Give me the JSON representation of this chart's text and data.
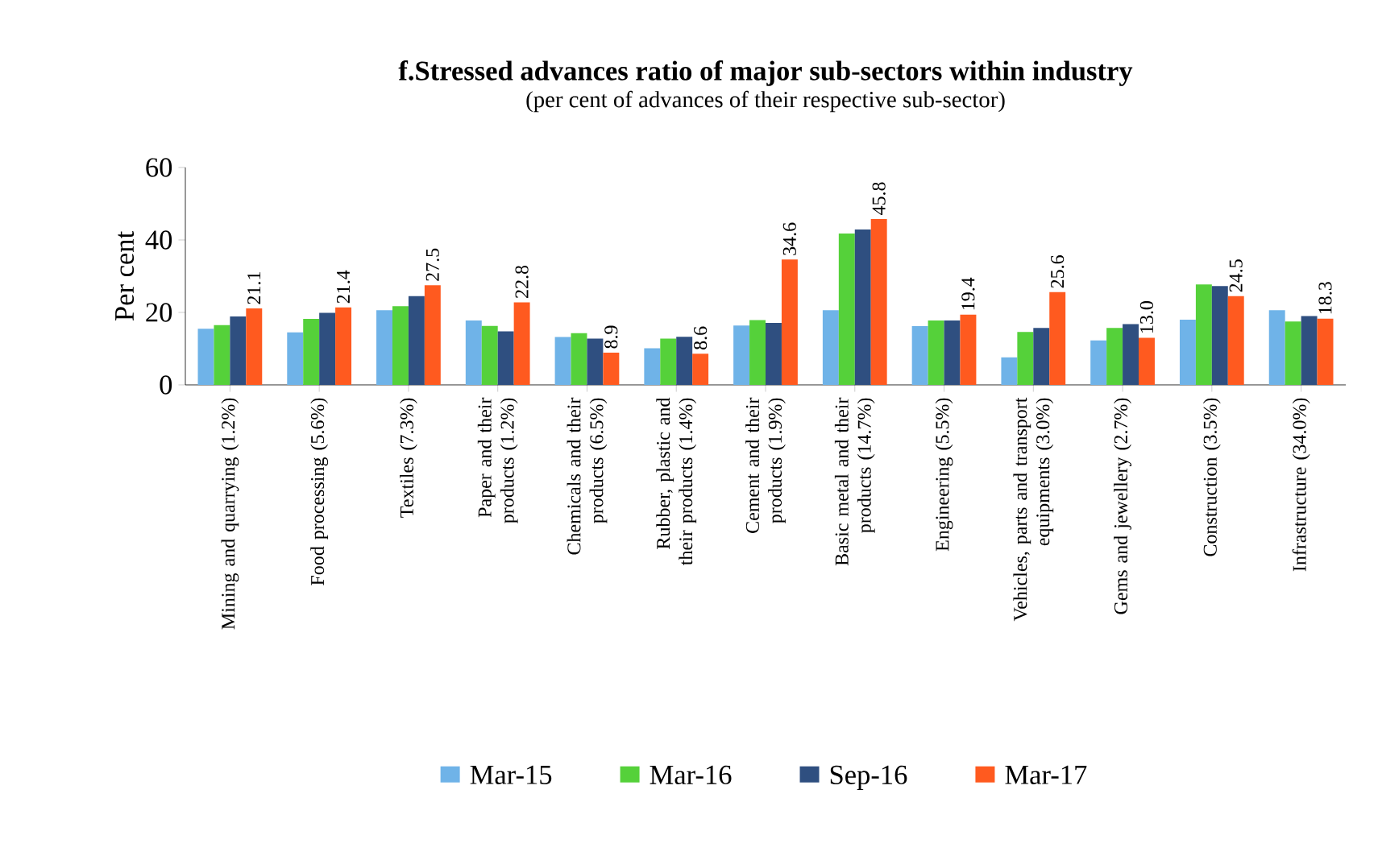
{
  "chart_data": {
    "type": "bar",
    "title": "f.Stressed advances ratio of major sub-sectors within industry",
    "subtitle": "(per cent of advances of their respective sub-sector)",
    "ylabel": "Per cent",
    "categories": [
      "Mining and quarrying (1.2%)",
      "Food processing (5.6%)",
      "Textiles (7.3%)",
      "Paper and their products (1.2%)",
      "Chemicals and their products (6.5%)",
      "Rubber, plastic and their products (1.4%)",
      "Cement and their products (1.9%)",
      "Basic metal and their products (14.7%)",
      "Engineering (5.5%)",
      "Vehicles, parts and transport equipments (3.0%)",
      "Gems and jewellery (2.7%)",
      "Construction (3.5%)",
      "Infrastructure (34.0%)"
    ],
    "series": [
      {
        "name": "Mar-15",
        "color": "#6fb3e8",
        "values": [
          15.5,
          14.5,
          20.6,
          17.8,
          13.2,
          10.1,
          16.4,
          20.6,
          16.2,
          7.6,
          12.3,
          18.0,
          20.6
        ]
      },
      {
        "name": "Mar-16",
        "color": "#55d13a",
        "values": [
          16.5,
          18.2,
          21.7,
          16.3,
          14.3,
          12.8,
          17.9,
          41.8,
          17.8,
          14.6,
          15.7,
          27.7,
          17.5
        ]
      },
      {
        "name": "Sep-16",
        "color": "#2f4f80",
        "values": [
          18.9,
          19.9,
          24.5,
          14.8,
          12.8,
          13.3,
          17.1,
          42.9,
          17.8,
          15.7,
          16.8,
          27.3,
          19.0
        ]
      },
      {
        "name": "Mar-17",
        "color": "#ff5a1f",
        "values": [
          21.1,
          21.4,
          27.5,
          22.8,
          8.9,
          8.6,
          34.6,
          45.8,
          19.4,
          25.6,
          13.0,
          24.5,
          18.3
        ],
        "value_labels": [
          "21.1",
          "21.4",
          "27.5",
          "22.8",
          "8.9",
          "8.6",
          "34.6",
          "45.8",
          "19.4",
          "25.6",
          "13.0",
          "24.5",
          "18.3"
        ]
      }
    ],
    "ylim": [
      0,
      60
    ],
    "yticks": [
      0,
      20,
      40,
      60
    ],
    "legend": "bottom",
    "grid": false
  }
}
